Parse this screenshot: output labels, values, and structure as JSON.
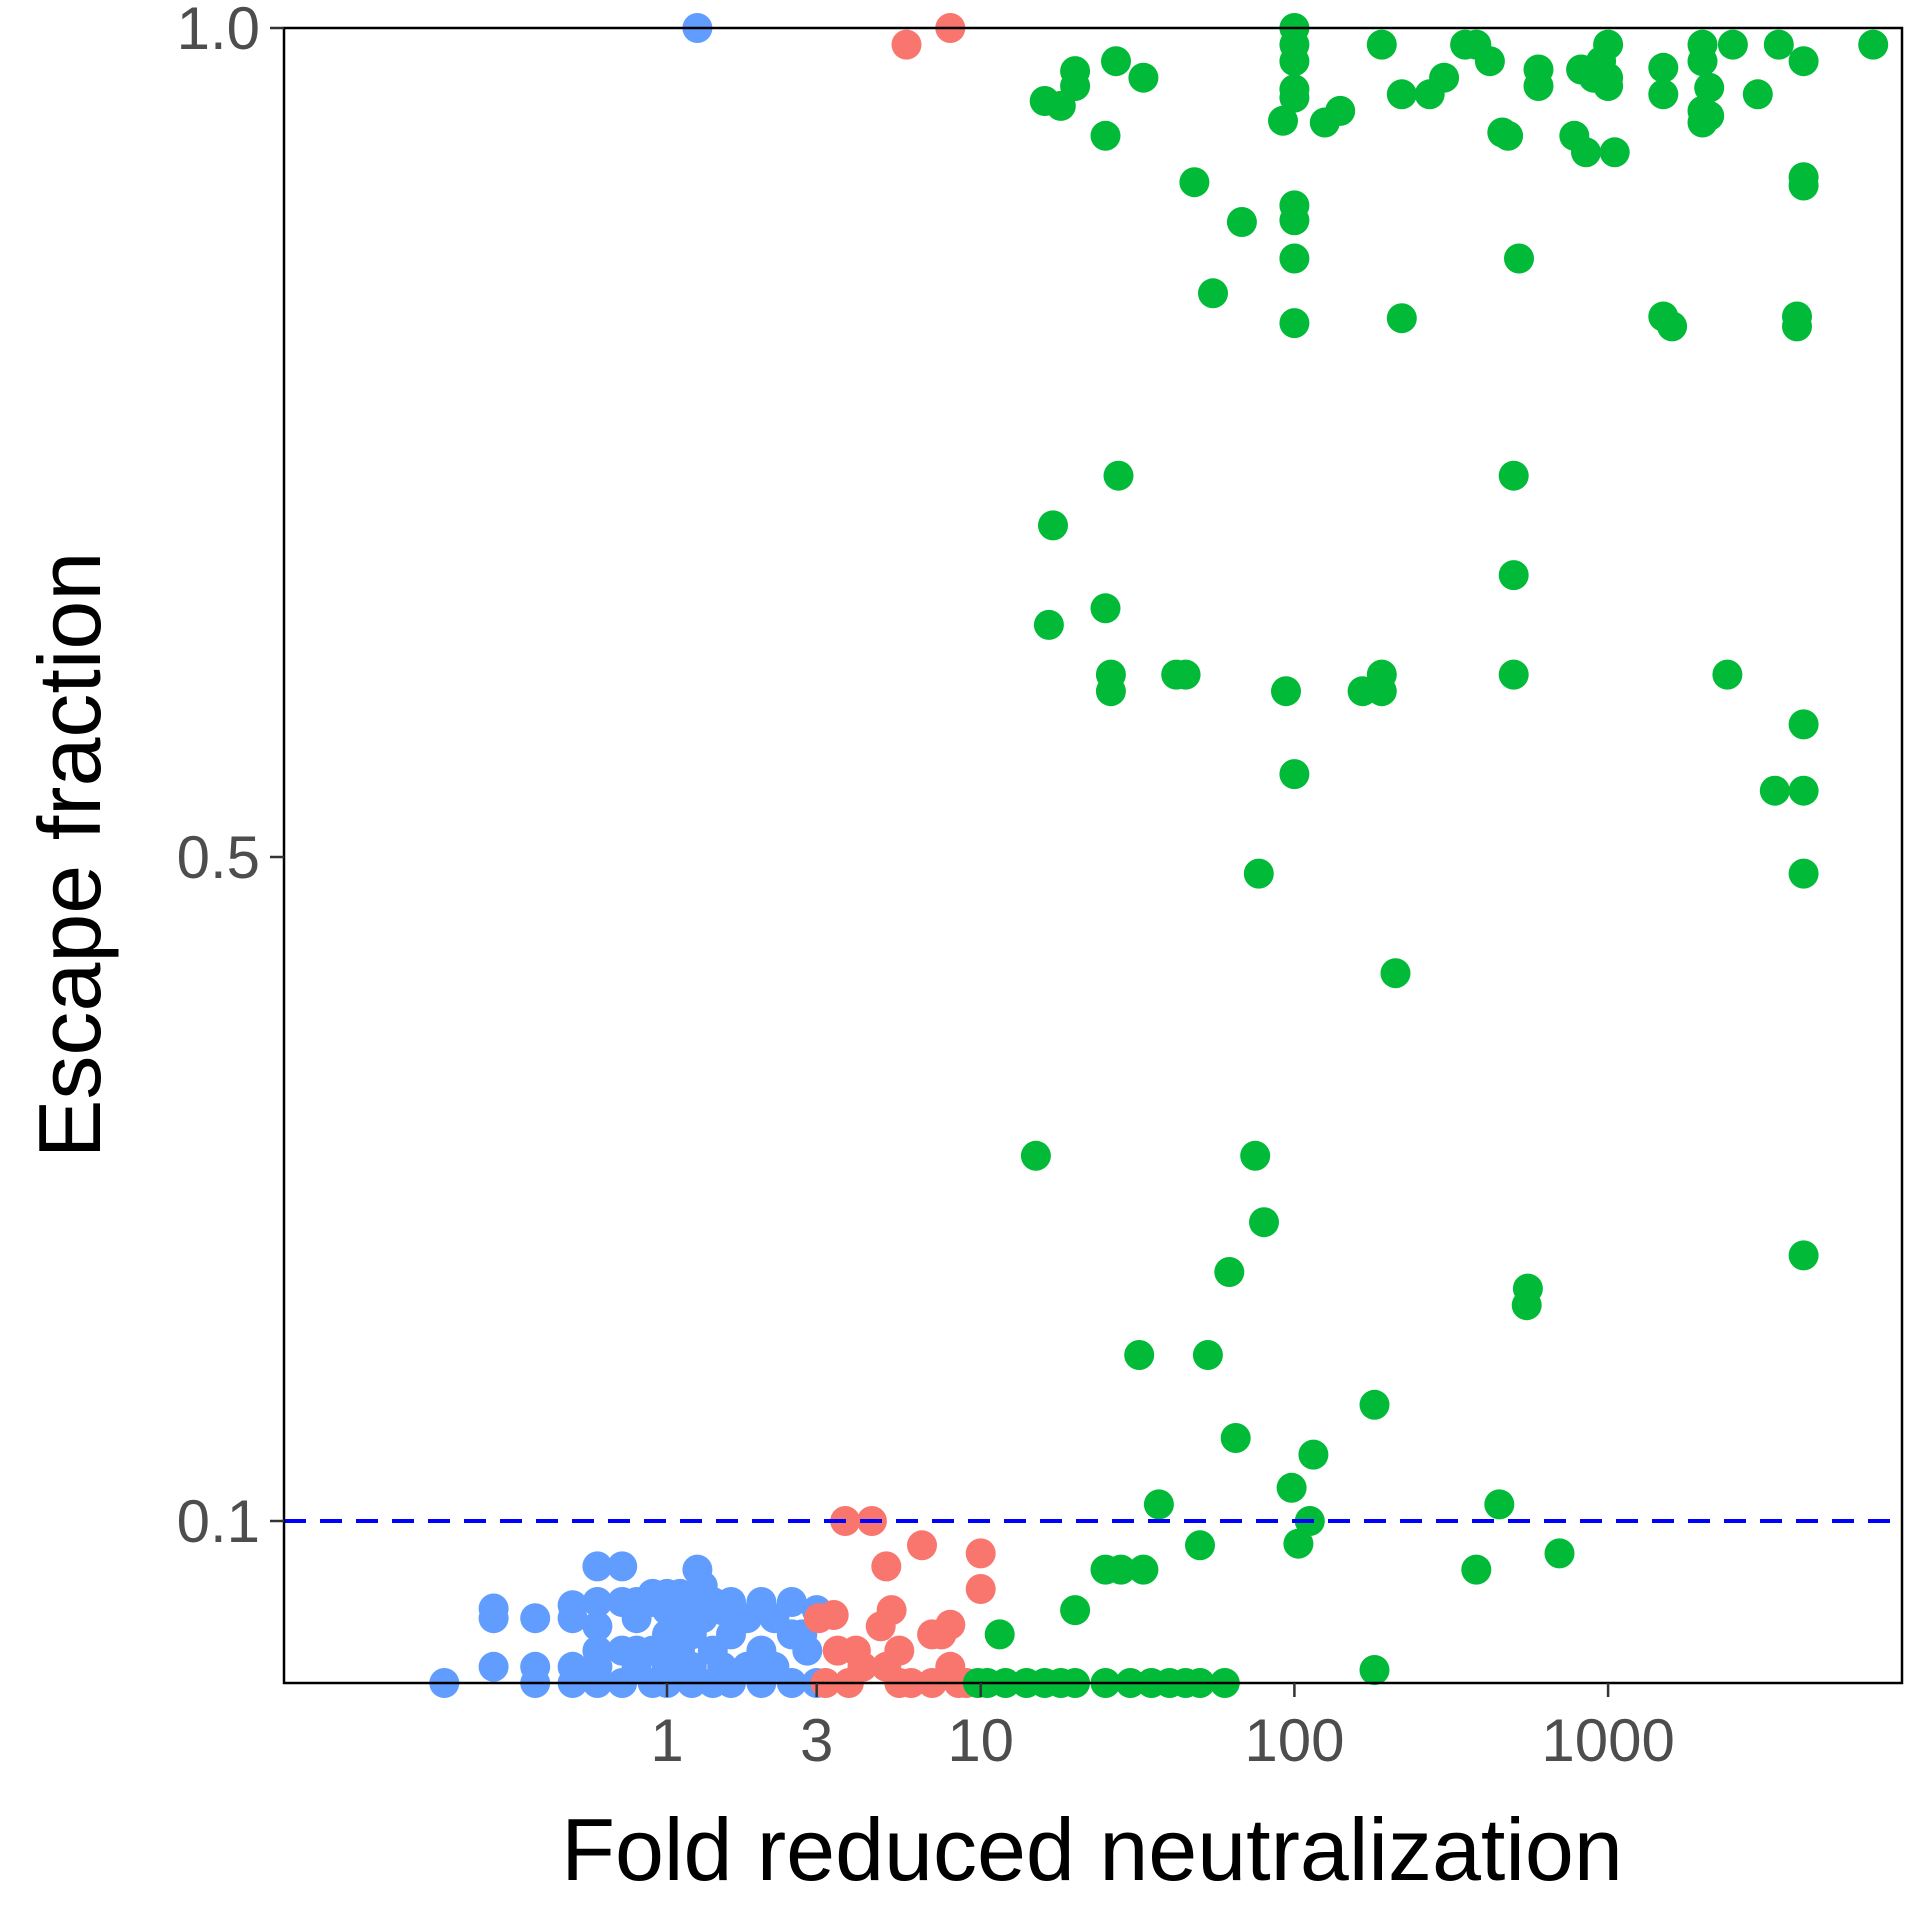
{
  "chart_data": {
    "type": "scatter",
    "title": "",
    "xlabel": "Fold reduced neutralization",
    "ylabel": "Escape fraction",
    "x_scale": "log10",
    "y_scale": "custom-piecewise-sqrt",
    "xlim": [
      0.1,
      10000
    ],
    "ylim": [
      0.0,
      1.0
    ],
    "x_ticks": [
      {
        "value": 1,
        "label": "1"
      },
      {
        "value": 3,
        "label": "3"
      },
      {
        "value": 10,
        "label": "10"
      },
      {
        "value": 100,
        "label": "100"
      },
      {
        "value": 1000,
        "label": "1000"
      }
    ],
    "y_ticks": [
      {
        "value": 0.1,
        "label": "0.1"
      },
      {
        "value": 0.5,
        "label": "0.5"
      },
      {
        "value": 1.0,
        "label": "1.0"
      }
    ],
    "threshold": {
      "y": 0.1,
      "color": "#0000ff",
      "style": "dashed"
    },
    "grid": false,
    "legend": "none",
    "point_radius_note": "points rendered as filled circles",
    "series": [
      {
        "color": "#619cff",
        "points": [
          [
            0.195,
            0.0
          ],
          [
            0.28,
            0.046
          ],
          [
            0.28,
            0.04
          ],
          [
            0.28,
            0.01
          ],
          [
            0.38,
            0.04
          ],
          [
            0.38,
            0.01
          ],
          [
            0.38,
            0.0
          ],
          [
            0.5,
            0.048
          ],
          [
            0.5,
            0.04
          ],
          [
            0.5,
            0.01
          ],
          [
            0.5,
            0.0
          ],
          [
            0.6,
            0.072
          ],
          [
            0.6,
            0.05
          ],
          [
            0.6,
            0.035
          ],
          [
            0.6,
            0.02
          ],
          [
            0.6,
            0.01
          ],
          [
            0.6,
            0.0
          ],
          [
            0.72,
            0.072
          ],
          [
            0.72,
            0.05
          ],
          [
            0.72,
            0.02
          ],
          [
            0.72,
            0.0
          ],
          [
            0.8,
            0.05
          ],
          [
            0.8,
            0.04
          ],
          [
            0.8,
            0.02
          ],
          [
            0.8,
            0.01
          ],
          [
            0.9,
            0.055
          ],
          [
            0.9,
            0.05
          ],
          [
            0.9,
            0.02
          ],
          [
            0.9,
            0.0
          ],
          [
            1.0,
            0.055
          ],
          [
            1.0,
            0.045
          ],
          [
            1.0,
            0.03
          ],
          [
            1.0,
            0.01
          ],
          [
            1.0,
            0.0
          ],
          [
            1.1,
            0.055
          ],
          [
            1.1,
            0.04
          ],
          [
            1.1,
            0.02
          ],
          [
            1.2,
            0.05
          ],
          [
            1.2,
            0.03
          ],
          [
            1.2,
            0.01
          ],
          [
            1.2,
            0.0
          ],
          [
            1.25,
            0.07
          ],
          [
            1.3,
            0.06
          ],
          [
            1.3,
            0.04
          ],
          [
            1.4,
            0.05
          ],
          [
            1.4,
            0.02
          ],
          [
            1.4,
            0.0
          ],
          [
            1.5,
            0.045
          ],
          [
            1.5,
            0.01
          ],
          [
            1.6,
            0.05
          ],
          [
            1.6,
            0.03
          ],
          [
            1.6,
            0.0
          ],
          [
            1.8,
            0.04
          ],
          [
            1.8,
            0.01
          ],
          [
            2.0,
            0.05
          ],
          [
            2.0,
            0.02
          ],
          [
            2.0,
            0.0
          ],
          [
            2.2,
            0.04
          ],
          [
            2.2,
            0.01
          ],
          [
            2.5,
            0.05
          ],
          [
            2.5,
            0.03
          ],
          [
            2.5,
            0.0
          ],
          [
            2.7,
            0.03
          ],
          [
            2.8,
            0.02
          ],
          [
            3.0,
            0.045
          ],
          [
            3.0,
            0.0
          ],
          [
            1.25,
            1.0
          ]
        ]
      },
      {
        "color": "#f8766d",
        "points": [
          [
            3.05,
            0.04
          ],
          [
            3.4,
            0.042
          ],
          [
            3.5,
            0.02
          ],
          [
            3.7,
            0.1
          ],
          [
            4.5,
            0.1
          ],
          [
            5.0,
            0.072
          ],
          [
            4.8,
            0.035
          ],
          [
            5.2,
            0.045
          ],
          [
            5.0,
            0.01
          ],
          [
            5.5,
            0.02
          ],
          [
            6.0,
            0.0
          ],
          [
            6.5,
            0.085
          ],
          [
            7.0,
            0.03
          ],
          [
            7.5,
            0.03
          ],
          [
            8.0,
            0.036
          ],
          [
            8.5,
            0.0
          ],
          [
            10.0,
            0.08
          ],
          [
            10.0,
            0.058
          ],
          [
            4.2,
            0.01
          ],
          [
            3.2,
            0.0
          ],
          [
            3.8,
            0.0
          ],
          [
            4.0,
            0.02
          ],
          [
            5.5,
            0.0
          ],
          [
            7.0,
            0.0
          ],
          [
            8.0,
            0.01
          ],
          [
            9.0,
            0.0
          ],
          [
            5.8,
            0.99
          ],
          [
            8.0,
            1.0
          ]
        ]
      },
      {
        "color": "#00ba38",
        "points": [
          [
            9.8,
            0.0
          ],
          [
            10.5,
            0.0
          ],
          [
            11.5,
            0.03
          ],
          [
            12.0,
            0.0
          ],
          [
            14.0,
            0.0
          ],
          [
            16.0,
            0.0
          ],
          [
            18.0,
            0.0
          ],
          [
            20.0,
            0.0
          ],
          [
            25.0,
            0.0
          ],
          [
            30.0,
            0.0
          ],
          [
            35.0,
            0.0
          ],
          [
            40.0,
            0.0
          ],
          [
            45.0,
            0.0
          ],
          [
            50.0,
            0.0
          ],
          [
            60.0,
            0.0
          ],
          [
            20.0,
            0.045
          ],
          [
            25.0,
            0.07
          ],
          [
            28.0,
            0.07
          ],
          [
            33.0,
            0.07
          ],
          [
            50.0,
            0.085
          ],
          [
            103.0,
            0.086
          ],
          [
            180.0,
            0.008
          ],
          [
            700.0,
            0.08
          ],
          [
            380.0,
            0.07
          ],
          [
            15.0,
            0.32
          ],
          [
            16.5,
            0.64
          ],
          [
            17.0,
            0.7
          ],
          [
            25.0,
            0.65
          ],
          [
            26.0,
            0.61
          ],
          [
            26.0,
            0.6
          ],
          [
            27.5,
            0.73
          ],
          [
            32.0,
            0.2
          ],
          [
            37.0,
            0.11
          ],
          [
            42.0,
            0.61
          ],
          [
            45.0,
            0.61
          ],
          [
            53.0,
            0.2
          ],
          [
            62.0,
            0.25
          ],
          [
            65.0,
            0.15
          ],
          [
            75.0,
            0.32
          ],
          [
            77.0,
            0.49
          ],
          [
            80.0,
            0.28
          ],
          [
            94.0,
            0.6
          ],
          [
            98.0,
            0.12
          ],
          [
            100.0,
            0.55
          ],
          [
            112.0,
            0.1
          ],
          [
            115.0,
            0.14
          ],
          [
            165.0,
            0.6
          ],
          [
            180.0,
            0.17
          ],
          [
            190.0,
            0.6
          ],
          [
            190.0,
            0.61
          ],
          [
            210.0,
            0.43
          ],
          [
            500.0,
            0.73
          ],
          [
            500.0,
            0.67
          ],
          [
            500.0,
            0.61
          ],
          [
            550.0,
            0.23
          ],
          [
            555.0,
            0.24
          ],
          [
            450.0,
            0.11
          ],
          [
            2400.0,
            0.61
          ],
          [
            3400.0,
            0.54
          ],
          [
            4200.0,
            0.58
          ],
          [
            4200.0,
            0.54
          ],
          [
            4200.0,
            0.49
          ],
          [
            4200.0,
            0.26
          ],
          [
            16.0,
            0.956
          ],
          [
            18.0,
            0.953
          ],
          [
            20.0,
            0.974
          ],
          [
            20.0,
            0.965
          ],
          [
            25.0,
            0.935
          ],
          [
            27.0,
            0.98
          ],
          [
            33.0,
            0.97
          ],
          [
            48.0,
            0.907
          ],
          [
            55.0,
            0.84
          ],
          [
            68.0,
            0.883
          ],
          [
            92.0,
            0.944
          ],
          [
            100.0,
            1.0
          ],
          [
            100.0,
            0.99
          ],
          [
            100.0,
            0.98
          ],
          [
            100.0,
            0.963
          ],
          [
            100.0,
            0.958
          ],
          [
            100.0,
            0.893
          ],
          [
            100.0,
            0.884
          ],
          [
            100.0,
            0.861
          ],
          [
            100.0,
            0.822
          ],
          [
            125.0,
            0.943
          ],
          [
            140.0,
            0.95
          ],
          [
            190.0,
            0.99
          ],
          [
            220.0,
            0.96
          ],
          [
            220.0,
            0.825
          ],
          [
            270.0,
            0.96
          ],
          [
            300.0,
            0.97
          ],
          [
            350.0,
            0.99
          ],
          [
            380.0,
            0.99
          ],
          [
            420.0,
            0.98
          ],
          [
            460.0,
            0.937
          ],
          [
            480.0,
            0.935
          ],
          [
            520.0,
            0.861
          ],
          [
            600.0,
            0.975
          ],
          [
            600.0,
            0.965
          ],
          [
            780.0,
            0.935
          ],
          [
            820.0,
            0.975
          ],
          [
            850.0,
            0.925
          ],
          [
            900.0,
            0.97
          ],
          [
            950.0,
            0.98
          ],
          [
            1000.0,
            0.99
          ],
          [
            1000.0,
            0.97
          ],
          [
            1000.0,
            0.965
          ],
          [
            1050.0,
            0.925
          ],
          [
            1500.0,
            0.976
          ],
          [
            1500.0,
            0.96
          ],
          [
            1500.0,
            0.826
          ],
          [
            1600.0,
            0.82
          ],
          [
            2000.0,
            0.98
          ],
          [
            2000.0,
            0.99
          ],
          [
            2000.0,
            0.95
          ],
          [
            2000.0,
            0.943
          ],
          [
            2100.0,
            0.964
          ],
          [
            2100.0,
            0.947
          ],
          [
            2500.0,
            0.99
          ],
          [
            3000.0,
            0.96
          ],
          [
            3500.0,
            0.99
          ],
          [
            4000.0,
            0.82
          ],
          [
            4000.0,
            0.826
          ],
          [
            4200.0,
            0.98
          ],
          [
            4200.0,
            0.905
          ],
          [
            4200.0,
            0.91
          ],
          [
            7000.0,
            0.99
          ]
        ]
      }
    ]
  }
}
